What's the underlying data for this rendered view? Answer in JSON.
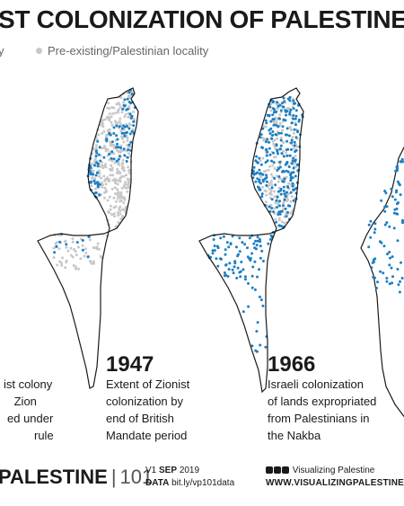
{
  "header": {
    "title": "ST COLONIZATION OF PALESTINE",
    "legend_zionist": "y",
    "legend_palestinian": "Pre-existing/Palestinian locality"
  },
  "colors": {
    "zionist": "#1b7fc4",
    "palestinian": "#c8c8c8",
    "outline": "#1a1a1a"
  },
  "panels": [
    {
      "year": "",
      "caption_lines": [
        "ist colony",
        " Zion",
        "ed under",
        "rule"
      ]
    },
    {
      "year": "1947",
      "caption_lines": [
        "Extent of Zionist",
        "colonization by",
        "end of British",
        "Mandate period"
      ]
    },
    {
      "year": "1966",
      "caption_lines": [
        "Israeli colonization",
        "of lands expropriated",
        "from Palestinians in",
        "the Nakba"
      ]
    }
  ],
  "footer": {
    "brand": "PALESTINE",
    "brand_separator": "|",
    "brand_number": "101",
    "version_prefix": "V1",
    "version_date": "SEP",
    "version_year": "2019",
    "data_label": "DATA",
    "data_url": "bit.ly/vp101data",
    "social_label": "Visualizing Palestine",
    "site_url": "WWW.VISUALIZINGPALESTINE.OR"
  }
}
